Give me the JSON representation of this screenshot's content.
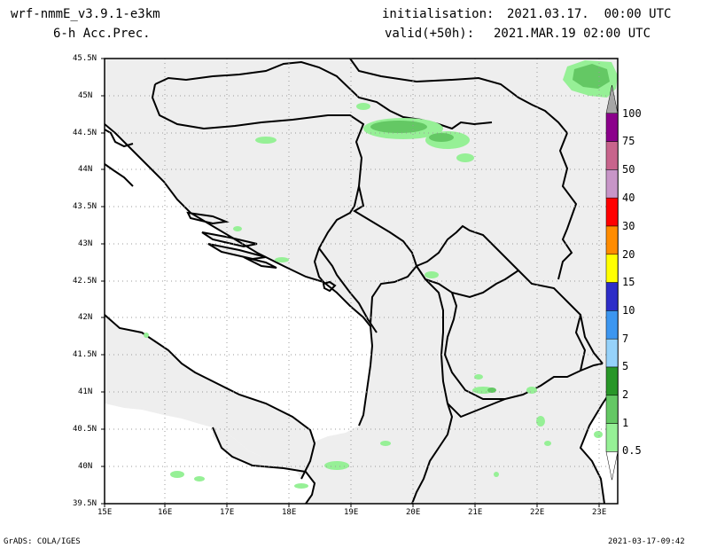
{
  "header": {
    "model": "wrf-nmmE_v3.9.1-e3km",
    "field": "6-h Acc.Prec.",
    "init_label": "initialisation:",
    "init_value": "2021.03.17.  00:00 UTC",
    "valid_label": "valid(+50h):",
    "valid_value": "2021.MAR.19 02:00 UTC"
  },
  "footer": {
    "credit": "GrADS: COLA/IGES",
    "timestamp": "2021-03-17-09:42"
  },
  "lat_ticks": [
    "45.5N",
    "45N",
    "44.5N",
    "44N",
    "43.5N",
    "43N",
    "42.5N",
    "42N",
    "41.5N",
    "41N",
    "40.5N",
    "40N",
    "39.5N"
  ],
  "lon_ticks": [
    "15E",
    "16E",
    "17E",
    "18E",
    "19E",
    "20E",
    "21E",
    "22E",
    "23E"
  ],
  "colorbar": {
    "levels": [
      "100",
      "75",
      "50",
      "40",
      "30",
      "20",
      "15",
      "10",
      "7",
      "5",
      "2",
      "1",
      "0.5"
    ],
    "colors": [
      "#a6a6a6",
      "#8b008b",
      "#c8648c",
      "#c896c8",
      "#ff0000",
      "#ff8c00",
      "#ffff00",
      "#2d2dc8",
      "#3c96f0",
      "#96d2fa",
      "#289628",
      "#64c864",
      "#96f096"
    ]
  },
  "colors": {
    "land": "#eeeeee",
    "light_precip": "#96f096",
    "mid_precip": "#64c864",
    "coast": "#000000",
    "grid": "#9a9a9a"
  }
}
